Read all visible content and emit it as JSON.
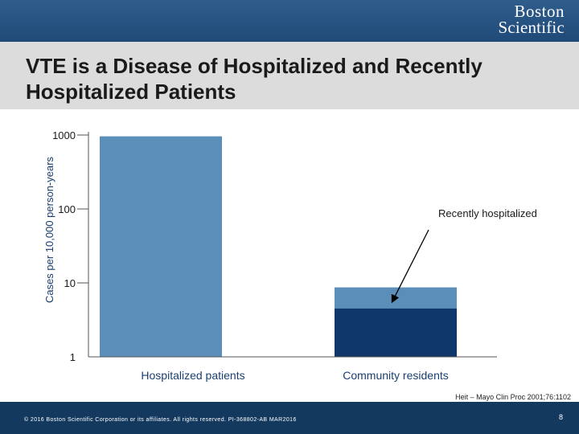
{
  "header": {
    "logo_line1": "Boston",
    "logo_line2": "Scientific",
    "title": "VTE is a Disease of Hospitalized and Recently Hospitalized Patients"
  },
  "colors": {
    "topbar": "#1f4a78",
    "title_band": "#dcdcdc",
    "bar_light": "#5b8fb9",
    "bar_dark": "#10376a",
    "footer": "#14395f"
  },
  "chart_data": {
    "type": "bar",
    "scale": "log",
    "ylabel": "Cases per 10,000 person-years",
    "ylim": [
      1,
      1000
    ],
    "yticks": [
      "1000",
      "100",
      "10",
      "1"
    ],
    "categories": [
      "Hospitalized patients",
      "Community residents"
    ],
    "bars": [
      {
        "category": "Hospitalized patients",
        "total": 960,
        "recently_hospitalized": 0
      },
      {
        "category": "Community residents",
        "total": 8.7,
        "recently_hospitalized": 4.5
      }
    ],
    "annotation": "Recently hospitalized",
    "grid": false
  },
  "source": "Heit – Mayo Clin Proc 2001;76:1102",
  "footer": {
    "copyright": "© 2016 Boston Scientific Corporation or its affiliates. All rights reserved. PI-368802-AB MAR2016",
    "page_number": "8"
  }
}
